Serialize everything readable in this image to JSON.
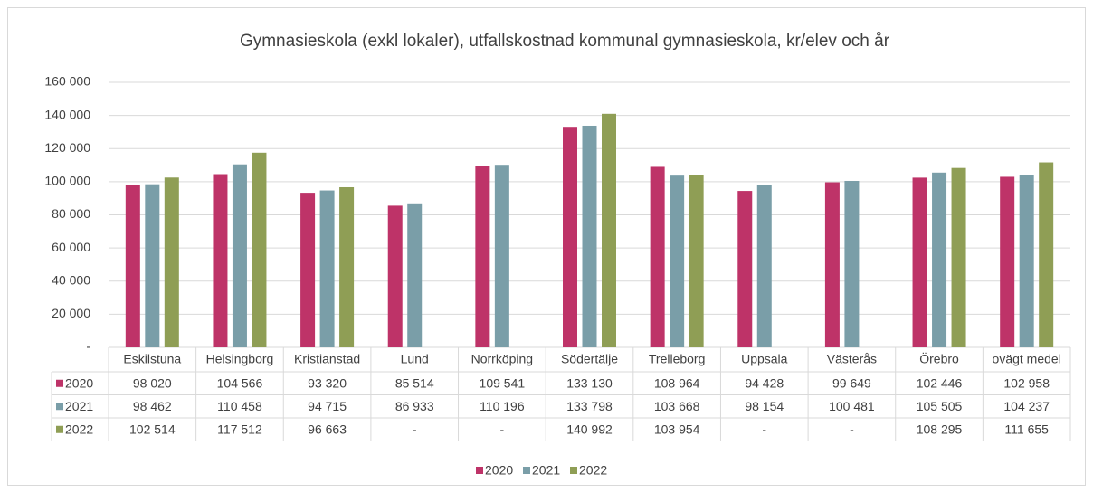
{
  "chart_data": {
    "type": "bar",
    "title": "Gymnasieskola (exkl lokaler), utfallskostnad kommunal gymnasieskola, kr/elev och år",
    "categories": [
      "Eskilstuna",
      "Helsingborg",
      "Kristianstad",
      "Lund",
      "Norrköping",
      "Södertälje",
      "Trelleborg",
      "Uppsala",
      "Västerås",
      "Örebro",
      "ovägt medel"
    ],
    "series": [
      {
        "name": "2020",
        "color": "#be3368",
        "values": [
          98020,
          104566,
          93320,
          85514,
          109541,
          133130,
          108964,
          94428,
          99649,
          102446,
          102958
        ],
        "value_labels": [
          "98 020",
          "104 566",
          "93 320",
          "85 514",
          "109 541",
          "133 130",
          "108 964",
          "94 428",
          "99 649",
          "102 446",
          "102 958"
        ]
      },
      {
        "name": "2021",
        "color": "#7a9ea8",
        "values": [
          98462,
          110458,
          94715,
          86933,
          110196,
          133798,
          103668,
          98154,
          100481,
          105505,
          104237
        ],
        "value_labels": [
          "98 462",
          "110 458",
          "94 715",
          "86 933",
          "110 196",
          "133 798",
          "103 668",
          "98 154",
          "100 481",
          "105 505",
          "104 237"
        ]
      },
      {
        "name": "2022",
        "color": "#8f9e55",
        "values": [
          102514,
          117512,
          96663,
          null,
          null,
          140992,
          103954,
          null,
          null,
          108295,
          111655
        ],
        "value_labels": [
          "102 514",
          "117 512",
          "96 663",
          "-",
          "-",
          "140 992",
          "103 954",
          "-",
          "-",
          "108 295",
          "111 655"
        ]
      }
    ],
    "ylim": [
      0,
      160000
    ],
    "yticks": [
      {
        "value": 0,
        "label": "-"
      },
      {
        "value": 20000,
        "label": "20 000"
      },
      {
        "value": 40000,
        "label": "40 000"
      },
      {
        "value": 60000,
        "label": "60 000"
      },
      {
        "value": 80000,
        "label": "80 000"
      },
      {
        "value": 100000,
        "label": "100 000"
      },
      {
        "value": 120000,
        "label": "120 000"
      },
      {
        "value": 140000,
        "label": "140 000"
      },
      {
        "value": 160000,
        "label": "160 000"
      }
    ],
    "grid": true
  }
}
